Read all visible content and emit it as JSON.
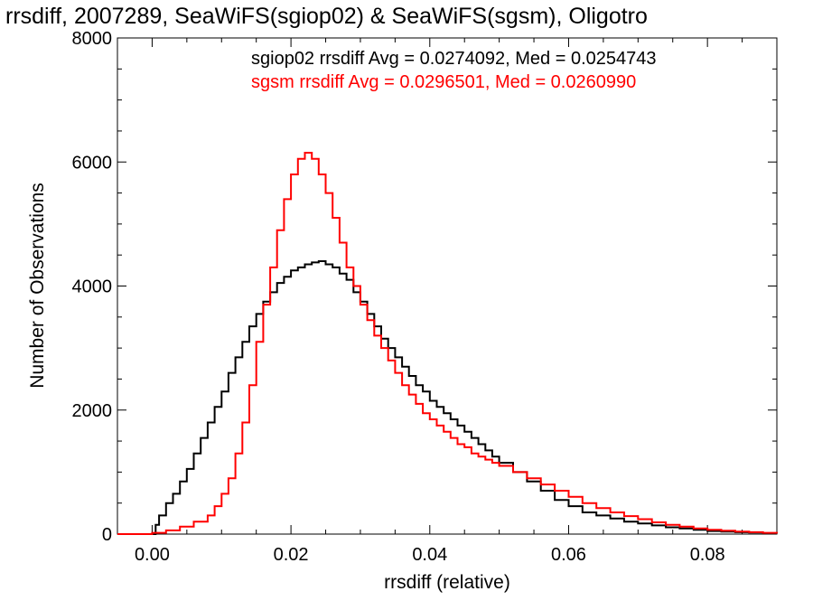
{
  "chart_data": {
    "type": "line",
    "title": "rrsdiff, 2007289, SeaWiFS(sgiop02) & SeaWiFS(sgsm), Oligotro",
    "xlabel": "rrsdiff (relative)",
    "ylabel": "Number of Observations",
    "xlim": [
      -0.005,
      0.09
    ],
    "ylim": [
      0,
      8000
    ],
    "x_ticks": [
      0.0,
      0.02,
      0.04,
      0.06,
      0.08
    ],
    "x_tick_labels": [
      "0.00",
      "0.02",
      "0.04",
      "0.06",
      "0.08"
    ],
    "y_ticks": [
      0,
      2000,
      4000,
      6000,
      8000
    ],
    "y_tick_labels": [
      "0",
      "2000",
      "4000",
      "6000",
      "8000"
    ],
    "grid": false,
    "legend_position": "top-right",
    "annotations": [
      {
        "text": "sgiop02 rrsdiff Avg = 0.0274092, Med = 0.0254743",
        "color": "#000000"
      },
      {
        "text": "sgsm rrsdiff Avg = 0.0296501, Med = 0.0260990",
        "color": "#ff0000"
      }
    ],
    "series": [
      {
        "color": "#000000",
        "x": [
          -0.005,
          0.0,
          0.0005,
          0.001,
          0.002,
          0.003,
          0.004,
          0.005,
          0.006,
          0.007,
          0.008,
          0.009,
          0.01,
          0.011,
          0.012,
          0.013,
          0.014,
          0.015,
          0.016,
          0.017,
          0.018,
          0.019,
          0.02,
          0.021,
          0.022,
          0.023,
          0.024,
          0.025,
          0.026,
          0.027,
          0.028,
          0.029,
          0.03,
          0.031,
          0.032,
          0.033,
          0.034,
          0.035,
          0.036,
          0.037,
          0.038,
          0.039,
          0.04,
          0.041,
          0.042,
          0.043,
          0.044,
          0.045,
          0.046,
          0.047,
          0.048,
          0.049,
          0.05,
          0.052,
          0.054,
          0.056,
          0.058,
          0.06,
          0.062,
          0.064,
          0.066,
          0.068,
          0.07,
          0.072,
          0.074,
          0.076,
          0.078,
          0.08,
          0.082,
          0.084,
          0.086,
          0.088,
          0.09
        ],
        "y": [
          0,
          0,
          150,
          300,
          500,
          650,
          850,
          1050,
          1300,
          1550,
          1800,
          2050,
          2300,
          2600,
          2850,
          3100,
          3350,
          3550,
          3750,
          3900,
          4050,
          4150,
          4250,
          4300,
          4350,
          4380,
          4400,
          4350,
          4300,
          4200,
          4100,
          3900,
          3750,
          3550,
          3350,
          3150,
          3000,
          2850,
          2700,
          2550,
          2400,
          2300,
          2150,
          2050,
          1950,
          1850,
          1750,
          1650,
          1550,
          1450,
          1350,
          1250,
          1150,
          1000,
          850,
          700,
          550,
          450,
          350,
          300,
          250,
          200,
          170,
          140,
          110,
          90,
          70,
          50,
          40,
          30,
          25,
          15,
          10
        ]
      },
      {
        "color": "#ff0000",
        "x": [
          -0.005,
          0.0,
          0.002,
          0.004,
          0.006,
          0.008,
          0.009,
          0.01,
          0.011,
          0.012,
          0.013,
          0.014,
          0.015,
          0.016,
          0.017,
          0.018,
          0.019,
          0.02,
          0.021,
          0.022,
          0.023,
          0.024,
          0.025,
          0.026,
          0.027,
          0.028,
          0.029,
          0.03,
          0.031,
          0.032,
          0.033,
          0.034,
          0.035,
          0.036,
          0.037,
          0.038,
          0.039,
          0.04,
          0.041,
          0.042,
          0.043,
          0.044,
          0.045,
          0.046,
          0.047,
          0.048,
          0.049,
          0.05,
          0.052,
          0.054,
          0.056,
          0.058,
          0.06,
          0.062,
          0.064,
          0.066,
          0.068,
          0.07,
          0.072,
          0.074,
          0.076,
          0.078,
          0.08,
          0.082,
          0.084,
          0.086,
          0.088,
          0.09
        ],
        "y": [
          0,
          20,
          60,
          120,
          200,
          300,
          450,
          650,
          900,
          1300,
          1800,
          2400,
          3100,
          3700,
          4300,
          4900,
          5400,
          5800,
          6050,
          6150,
          6050,
          5800,
          5500,
          5100,
          4700,
          4300,
          4000,
          3700,
          3450,
          3200,
          3000,
          2800,
          2600,
          2400,
          2250,
          2100,
          1950,
          1850,
          1750,
          1650,
          1550,
          1450,
          1400,
          1300,
          1250,
          1200,
          1150,
          1100,
          1000,
          900,
          800,
          700,
          600,
          500,
          420,
          350,
          290,
          240,
          190,
          150,
          120,
          90,
          70,
          55,
          40,
          30,
          20,
          10
        ]
      }
    ]
  }
}
